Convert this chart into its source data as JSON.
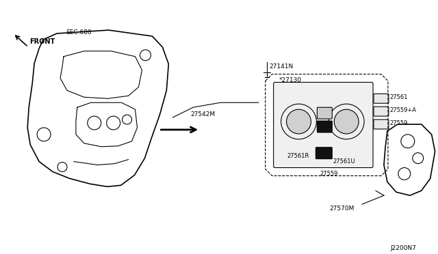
{
  "bg_color": "#ffffff",
  "line_color": "#000000",
  "fig_width": 6.4,
  "fig_height": 3.72,
  "dpi": 100,
  "part_number": "J2200N7",
  "labels": {
    "front": "FRONT",
    "sec680": "SEC.680",
    "l27141N": "27141N",
    "l27542M": "27542M",
    "l27130": "*27130",
    "l27561": "27561",
    "l27559A": "27559+A",
    "l27559a": "27559",
    "l27561R": "27561R",
    "l27561U": "27561U",
    "l27559b": "27559",
    "l27570M": "27570M"
  }
}
